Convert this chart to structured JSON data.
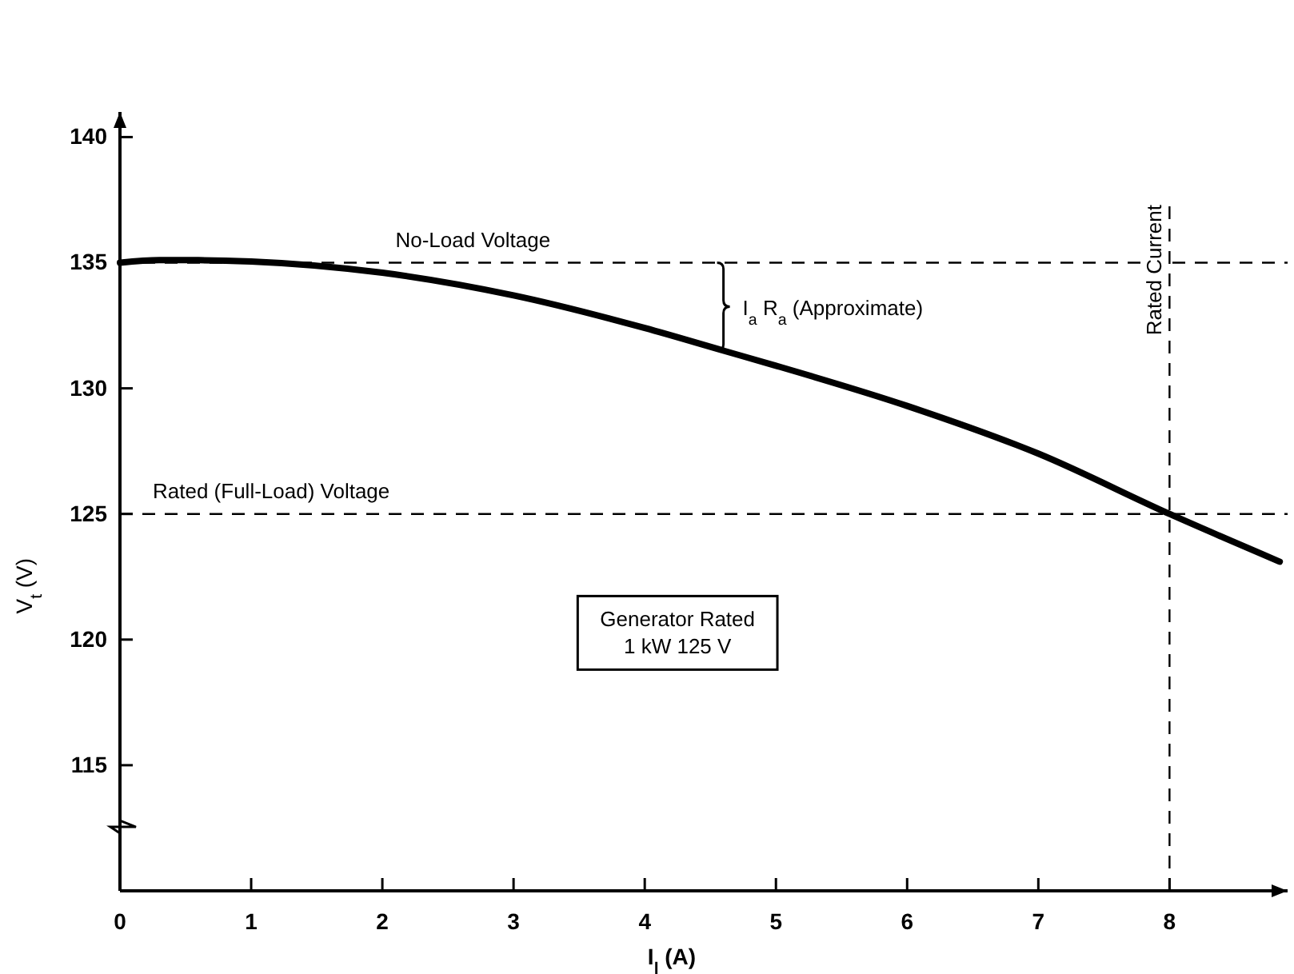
{
  "chart_data": {
    "type": "line",
    "xlabel": "I$_{l}$ (A)",
    "ylabel": "V$_{t}$ (V)",
    "x": [
      0,
      0.3,
      0.6,
      1,
      2,
      3,
      4,
      4.6,
      5,
      6,
      7,
      8,
      8.84
    ],
    "series": [
      {
        "color": "#000000",
        "values": [
          135,
          135.1,
          135.1,
          135.05,
          134.6,
          133.7,
          132.4,
          131.5,
          130.9,
          129.3,
          127.4,
          125,
          123.1
        ]
      }
    ],
    "xlim": [
      0,
      8.9
    ],
    "xticks": [
      0,
      1,
      2,
      3,
      4,
      5,
      6,
      7,
      8
    ],
    "ylim": [
      110,
      141
    ],
    "yticks": [
      115,
      120,
      125,
      130,
      135,
      140
    ],
    "ref_lines": [
      {
        "axis": "y",
        "value": 135,
        "label": "No-Load Voltage",
        "line_style": "dashed",
        "color": "#000000"
      },
      {
        "axis": "y",
        "value": 125,
        "label": "Rated (Full-Load) Voltage",
        "line_style": "dashed",
        "color": "#000000"
      },
      {
        "axis": "x",
        "value": 8,
        "label": "Rated Current",
        "line_style": "dashed",
        "color": "#000000"
      }
    ],
    "annotations": [
      "I$_{a}$ R$_{a}$ (Approximate)",
      "Generator Rated\n1 kW 125 V"
    ],
    "marker": "none",
    "line_style": "solid"
  }
}
